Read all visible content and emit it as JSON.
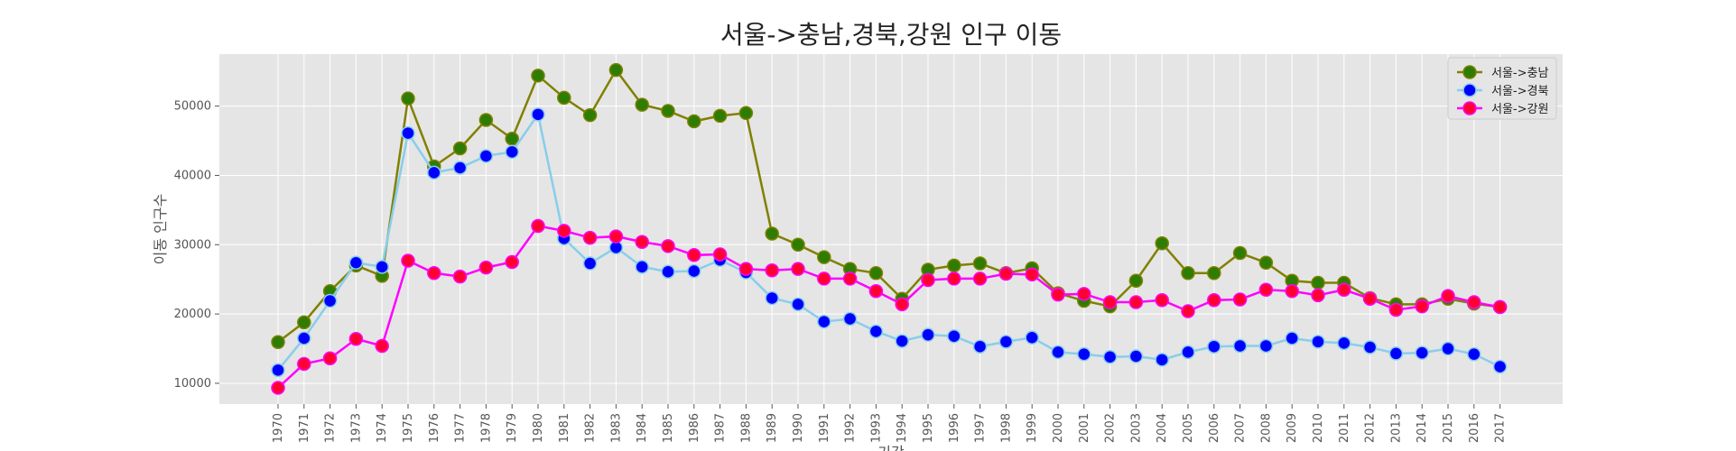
{
  "chart_data": {
    "type": "line",
    "title": "서울->충남,경북,강원 인구 이동",
    "xlabel": "기간",
    "ylabel": "이동 인구수",
    "categories": [
      "1970",
      "1971",
      "1972",
      "1973",
      "1974",
      "1975",
      "1976",
      "1977",
      "1978",
      "1979",
      "1980",
      "1981",
      "1982",
      "1983",
      "1984",
      "1985",
      "1986",
      "1987",
      "1988",
      "1989",
      "1990",
      "1991",
      "1992",
      "1993",
      "1994",
      "1995",
      "1996",
      "1997",
      "1998",
      "1999",
      "2000",
      "2001",
      "2002",
      "2003",
      "2004",
      "2005",
      "2006",
      "2007",
      "2008",
      "2009",
      "2010",
      "2011",
      "2012",
      "2013",
      "2014",
      "2015",
      "2016",
      "2017"
    ],
    "y_ticks": [
      "10000",
      "20000",
      "30000",
      "40000",
      "50000"
    ],
    "ylim": [
      7000,
      57500
    ],
    "grid": true,
    "legend_position": "top-right",
    "series": [
      {
        "name": "서울->충남",
        "line_color": "#808000",
        "marker_color": "#2d7d00",
        "values": [
          15950,
          18800,
          23300,
          27000,
          25500,
          51100,
          41300,
          43900,
          48000,
          45300,
          54400,
          51200,
          48700,
          55200,
          50200,
          49300,
          47800,
          48600,
          49000,
          31600,
          30000,
          28200,
          26500,
          25900,
          22200,
          26400,
          27000,
          27300,
          25900,
          26600,
          23000,
          21900,
          21100,
          24800,
          30200,
          25900,
          25900,
          28800,
          27400,
          24800,
          24500,
          24500,
          22300,
          21400,
          21400,
          22200,
          21500,
          21000
        ]
      },
      {
        "name": "서울->경북",
        "line_color": "#87ceeb",
        "marker_color": "#0000ff",
        "values": [
          11900,
          16500,
          21900,
          27400,
          26800,
          46100,
          40400,
          41100,
          42800,
          43400,
          48800,
          30900,
          27300,
          29600,
          26800,
          26100,
          26200,
          27800,
          26000,
          22300,
          21400,
          18900,
          19300,
          17500,
          16100,
          17000,
          16800,
          15300,
          16000,
          16600,
          14500,
          14200,
          13800,
          13900,
          13400,
          14500,
          15300,
          15400,
          15400,
          16500,
          16000,
          15800,
          15200,
          14300,
          14400,
          15000,
          14200,
          12400
        ]
      },
      {
        "name": "서울->강원",
        "line_color": "#ff00ff",
        "marker_color": "#ff0033",
        "values": [
          9350,
          12800,
          13600,
          16400,
          15400,
          27700,
          25900,
          25400,
          26700,
          27500,
          32700,
          32000,
          31000,
          31200,
          30400,
          29800,
          28500,
          28600,
          26500,
          26300,
          26500,
          25100,
          25100,
          23300,
          21400,
          24900,
          25100,
          25100,
          25800,
          25700,
          22800,
          22900,
          21700,
          21700,
          22000,
          20400,
          22000,
          22100,
          23500,
          23300,
          22700,
          23500,
          22200,
          20600,
          21100,
          22600,
          21700,
          21000
        ]
      }
    ]
  }
}
